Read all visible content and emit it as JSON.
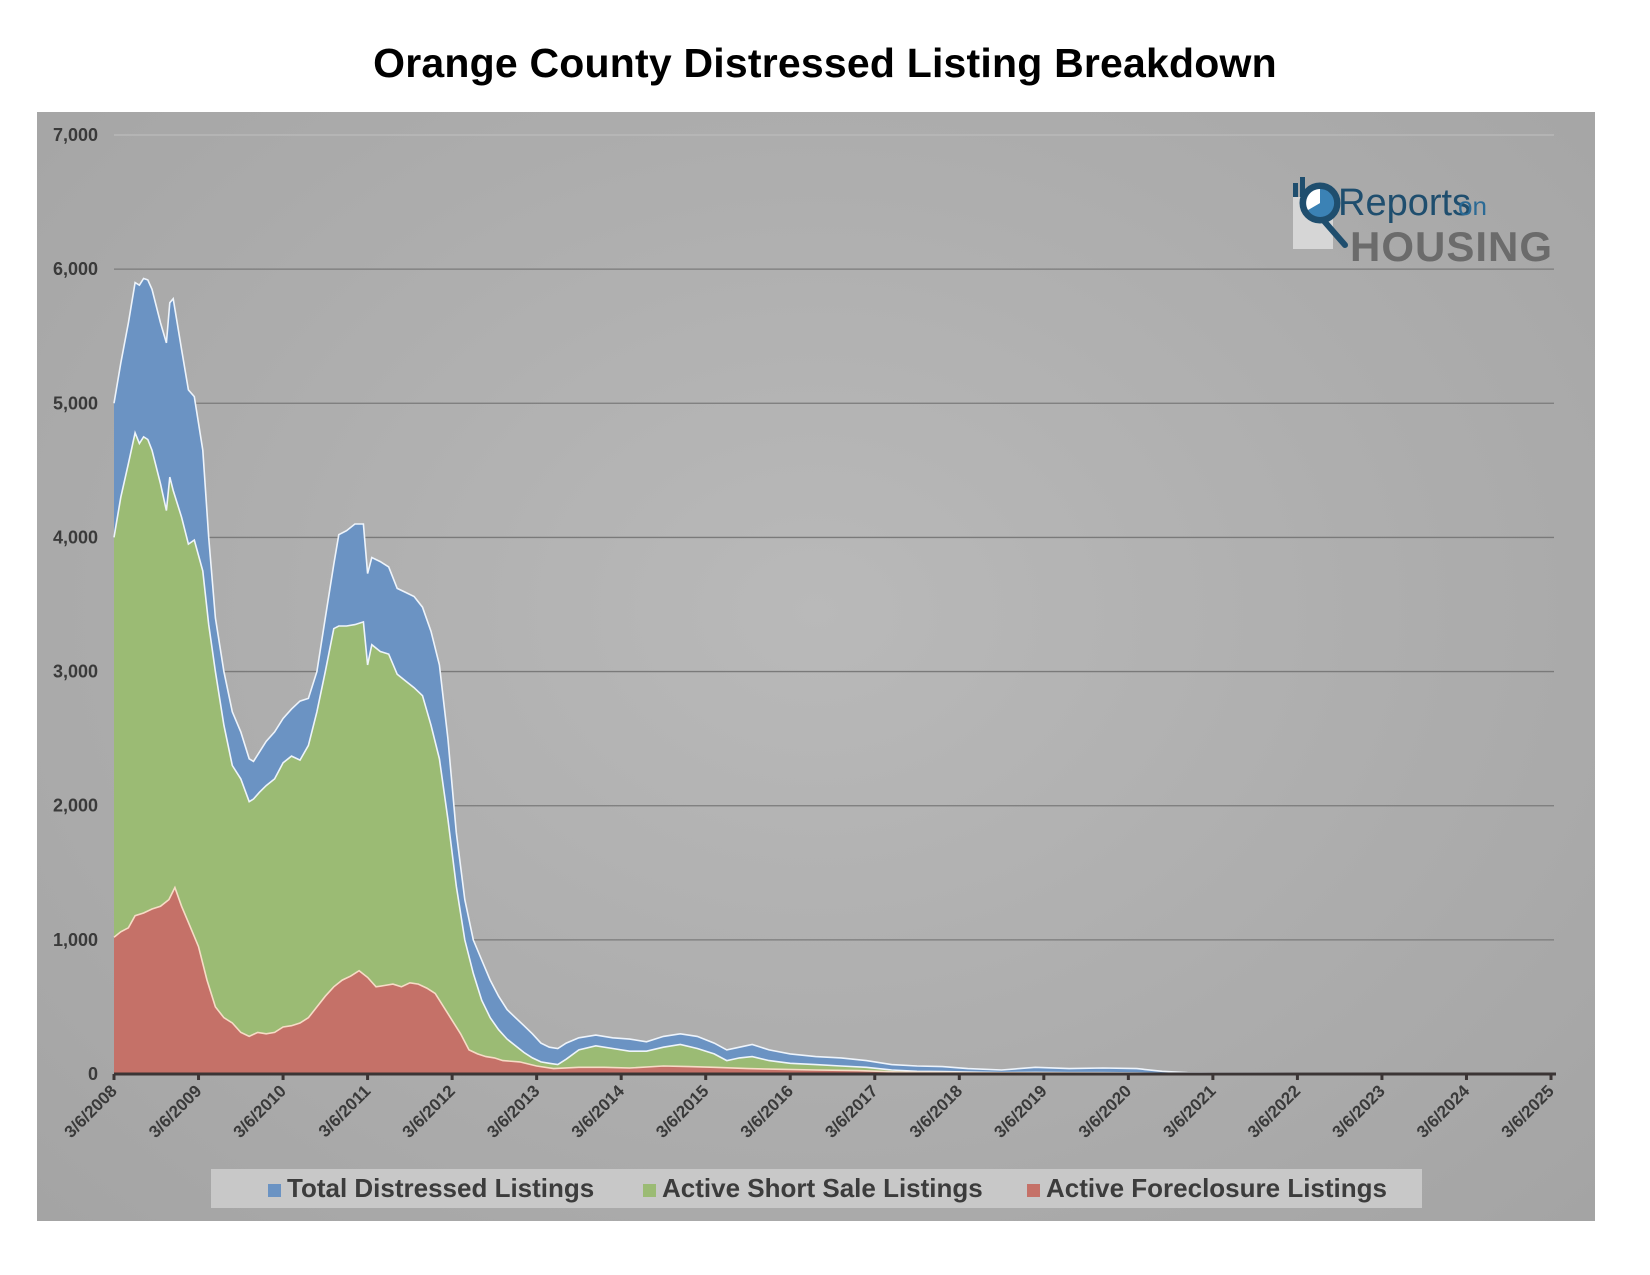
{
  "chart_data": {
    "type": "area",
    "title": "Orange County Distressed Listing Breakdown",
    "xlabel": "",
    "ylabel": "",
    "ylim": [
      0,
      7000
    ],
    "xlim": [
      2008,
      2025
    ],
    "grid": true,
    "legend_position": "bottom",
    "y_ticks": [
      "0",
      "1,000",
      "2,000",
      "3,000",
      "4,000",
      "5,000",
      "6,000",
      "7,000"
    ],
    "y_tick_values": [
      0,
      1000,
      2000,
      3000,
      4000,
      5000,
      6000,
      7000
    ],
    "x_ticks": [
      "3/6/2008",
      "3/6/2009",
      "3/6/2010",
      "3/6/2011",
      "3/6/2012",
      "3/6/2013",
      "3/6/2014",
      "3/6/2015",
      "3/6/2016",
      "3/6/2017",
      "3/6/2018",
      "3/6/2019",
      "3/6/2020",
      "3/6/2021",
      "3/6/2022",
      "3/6/2023",
      "3/6/2024",
      "3/6/2025"
    ],
    "x_tick_values": [
      2008,
      2009,
      2010,
      2011,
      2012,
      2013,
      2014,
      2015,
      2016,
      2017,
      2018,
      2019,
      2020,
      2021,
      2022,
      2023,
      2024,
      2025
    ],
    "series": [
      {
        "name": "Total Distressed Listings",
        "color": "#6b93c3",
        "points": [
          [
            2008.0,
            5000
          ],
          [
            2008.08,
            5300
          ],
          [
            2008.17,
            5600
          ],
          [
            2008.25,
            5900
          ],
          [
            2008.3,
            5880
          ],
          [
            2008.35,
            5930
          ],
          [
            2008.4,
            5920
          ],
          [
            2008.45,
            5850
          ],
          [
            2008.55,
            5600
          ],
          [
            2008.62,
            5450
          ],
          [
            2008.66,
            5750
          ],
          [
            2008.7,
            5780
          ],
          [
            2008.8,
            5400
          ],
          [
            2008.88,
            5100
          ],
          [
            2008.95,
            5050
          ],
          [
            2009.05,
            4650
          ],
          [
            2009.12,
            4000
          ],
          [
            2009.2,
            3400
          ],
          [
            2009.3,
            3000
          ],
          [
            2009.4,
            2700
          ],
          [
            2009.5,
            2550
          ],
          [
            2009.6,
            2350
          ],
          [
            2009.65,
            2330
          ],
          [
            2009.72,
            2400
          ],
          [
            2009.8,
            2480
          ],
          [
            2009.9,
            2550
          ],
          [
            2010.0,
            2650
          ],
          [
            2010.1,
            2720
          ],
          [
            2010.2,
            2780
          ],
          [
            2010.3,
            2800
          ],
          [
            2010.4,
            3000
          ],
          [
            2010.5,
            3400
          ],
          [
            2010.6,
            3800
          ],
          [
            2010.66,
            4020
          ],
          [
            2010.75,
            4050
          ],
          [
            2010.85,
            4100
          ],
          [
            2010.95,
            4100
          ],
          [
            2011.0,
            3730
          ],
          [
            2011.05,
            3850
          ],
          [
            2011.15,
            3820
          ],
          [
            2011.25,
            3780
          ],
          [
            2011.35,
            3620
          ],
          [
            2011.45,
            3590
          ],
          [
            2011.55,
            3560
          ],
          [
            2011.65,
            3480
          ],
          [
            2011.75,
            3300
          ],
          [
            2011.85,
            3050
          ],
          [
            2011.95,
            2500
          ],
          [
            2012.05,
            1800
          ],
          [
            2012.15,
            1300
          ],
          [
            2012.25,
            1000
          ],
          [
            2012.35,
            850
          ],
          [
            2012.45,
            700
          ],
          [
            2012.55,
            580
          ],
          [
            2012.65,
            480
          ],
          [
            2012.75,
            420
          ],
          [
            2012.85,
            360
          ],
          [
            2012.95,
            300
          ],
          [
            2013.05,
            230
          ],
          [
            2013.15,
            200
          ],
          [
            2013.25,
            190
          ],
          [
            2013.35,
            230
          ],
          [
            2013.5,
            270
          ],
          [
            2013.7,
            290
          ],
          [
            2013.9,
            270
          ],
          [
            2014.1,
            260
          ],
          [
            2014.3,
            240
          ],
          [
            2014.5,
            280
          ],
          [
            2014.7,
            300
          ],
          [
            2014.9,
            280
          ],
          [
            2015.1,
            230
          ],
          [
            2015.25,
            180
          ],
          [
            2015.4,
            200
          ],
          [
            2015.55,
            220
          ],
          [
            2015.75,
            180
          ],
          [
            2016.0,
            150
          ],
          [
            2016.3,
            130
          ],
          [
            2016.6,
            120
          ],
          [
            2016.9,
            100
          ],
          [
            2017.2,
            70
          ],
          [
            2017.5,
            60
          ],
          [
            2017.8,
            55
          ],
          [
            2018.1,
            40
          ],
          [
            2018.5,
            30
          ],
          [
            2018.9,
            50
          ],
          [
            2019.3,
            40
          ],
          [
            2019.7,
            45
          ],
          [
            2020.1,
            40
          ],
          [
            2020.4,
            20
          ],
          [
            2020.7,
            10
          ],
          [
            2021.0,
            8
          ],
          [
            2022.0,
            6
          ],
          [
            2023.0,
            5
          ],
          [
            2024.0,
            5
          ],
          [
            2025.0,
            5
          ]
        ]
      },
      {
        "name": "Active Short Sale Listings",
        "color": "#9bbb74",
        "points": [
          [
            2008.0,
            4000
          ],
          [
            2008.08,
            4300
          ],
          [
            2008.17,
            4550
          ],
          [
            2008.25,
            4780
          ],
          [
            2008.3,
            4700
          ],
          [
            2008.35,
            4750
          ],
          [
            2008.4,
            4730
          ],
          [
            2008.45,
            4650
          ],
          [
            2008.55,
            4400
          ],
          [
            2008.62,
            4200
          ],
          [
            2008.66,
            4450
          ],
          [
            2008.7,
            4350
          ],
          [
            2008.8,
            4150
          ],
          [
            2008.88,
            3950
          ],
          [
            2008.95,
            3980
          ],
          [
            2009.05,
            3750
          ],
          [
            2009.12,
            3350
          ],
          [
            2009.2,
            3000
          ],
          [
            2009.3,
            2600
          ],
          [
            2009.4,
            2300
          ],
          [
            2009.5,
            2200
          ],
          [
            2009.6,
            2030
          ],
          [
            2009.65,
            2050
          ],
          [
            2009.72,
            2100
          ],
          [
            2009.8,
            2150
          ],
          [
            2009.9,
            2200
          ],
          [
            2010.0,
            2320
          ],
          [
            2010.1,
            2370
          ],
          [
            2010.2,
            2340
          ],
          [
            2010.3,
            2450
          ],
          [
            2010.4,
            2700
          ],
          [
            2010.5,
            3000
          ],
          [
            2010.6,
            3320
          ],
          [
            2010.66,
            3340
          ],
          [
            2010.75,
            3340
          ],
          [
            2010.85,
            3350
          ],
          [
            2010.95,
            3370
          ],
          [
            2011.0,
            3050
          ],
          [
            2011.05,
            3200
          ],
          [
            2011.15,
            3150
          ],
          [
            2011.25,
            3130
          ],
          [
            2011.35,
            2980
          ],
          [
            2011.45,
            2930
          ],
          [
            2011.55,
            2880
          ],
          [
            2011.65,
            2820
          ],
          [
            2011.75,
            2600
          ],
          [
            2011.85,
            2350
          ],
          [
            2011.95,
            1900
          ],
          [
            2012.05,
            1400
          ],
          [
            2012.15,
            1000
          ],
          [
            2012.25,
            750
          ],
          [
            2012.35,
            550
          ],
          [
            2012.45,
            420
          ],
          [
            2012.55,
            330
          ],
          [
            2012.65,
            260
          ],
          [
            2012.75,
            210
          ],
          [
            2012.85,
            160
          ],
          [
            2012.95,
            120
          ],
          [
            2013.05,
            90
          ],
          [
            2013.15,
            80
          ],
          [
            2013.25,
            70
          ],
          [
            2013.35,
            110
          ],
          [
            2013.5,
            180
          ],
          [
            2013.7,
            210
          ],
          [
            2013.9,
            190
          ],
          [
            2014.1,
            170
          ],
          [
            2014.3,
            170
          ],
          [
            2014.5,
            200
          ],
          [
            2014.7,
            220
          ],
          [
            2014.9,
            190
          ],
          [
            2015.1,
            150
          ],
          [
            2015.25,
            100
          ],
          [
            2015.4,
            120
          ],
          [
            2015.55,
            130
          ],
          [
            2015.75,
            100
          ],
          [
            2016.0,
            80
          ],
          [
            2016.3,
            70
          ],
          [
            2016.6,
            60
          ],
          [
            2016.9,
            50
          ],
          [
            2017.2,
            30
          ],
          [
            2017.5,
            20
          ],
          [
            2017.8,
            18
          ],
          [
            2018.1,
            15
          ],
          [
            2018.5,
            10
          ],
          [
            2018.9,
            12
          ],
          [
            2019.3,
            10
          ],
          [
            2019.7,
            10
          ],
          [
            2020.1,
            8
          ],
          [
            2020.4,
            5
          ],
          [
            2020.7,
            3
          ],
          [
            2021.0,
            3
          ],
          [
            2022.0,
            2
          ],
          [
            2023.0,
            2
          ],
          [
            2024.0,
            2
          ],
          [
            2025.0,
            2
          ]
        ]
      },
      {
        "name": "Active Foreclosure Listings",
        "color": "#c57168",
        "points": [
          [
            2008.0,
            1020
          ],
          [
            2008.08,
            1060
          ],
          [
            2008.17,
            1090
          ],
          [
            2008.25,
            1180
          ],
          [
            2008.35,
            1200
          ],
          [
            2008.45,
            1230
          ],
          [
            2008.55,
            1250
          ],
          [
            2008.65,
            1300
          ],
          [
            2008.72,
            1390
          ],
          [
            2008.8,
            1250
          ],
          [
            2008.9,
            1100
          ],
          [
            2009.0,
            950
          ],
          [
            2009.1,
            700
          ],
          [
            2009.2,
            500
          ],
          [
            2009.3,
            420
          ],
          [
            2009.4,
            380
          ],
          [
            2009.5,
            310
          ],
          [
            2009.6,
            280
          ],
          [
            2009.7,
            310
          ],
          [
            2009.8,
            300
          ],
          [
            2009.9,
            310
          ],
          [
            2010.0,
            350
          ],
          [
            2010.1,
            360
          ],
          [
            2010.2,
            380
          ],
          [
            2010.3,
            420
          ],
          [
            2010.4,
            500
          ],
          [
            2010.5,
            580
          ],
          [
            2010.6,
            650
          ],
          [
            2010.7,
            700
          ],
          [
            2010.8,
            730
          ],
          [
            2010.9,
            770
          ],
          [
            2011.0,
            720
          ],
          [
            2011.1,
            650
          ],
          [
            2011.2,
            660
          ],
          [
            2011.3,
            670
          ],
          [
            2011.4,
            650
          ],
          [
            2011.5,
            680
          ],
          [
            2011.6,
            670
          ],
          [
            2011.7,
            640
          ],
          [
            2011.8,
            600
          ],
          [
            2011.9,
            500
          ],
          [
            2012.0,
            400
          ],
          [
            2012.1,
            300
          ],
          [
            2012.2,
            180
          ],
          [
            2012.3,
            150
          ],
          [
            2012.4,
            130
          ],
          [
            2012.5,
            120
          ],
          [
            2012.6,
            100
          ],
          [
            2012.8,
            90
          ],
          [
            2013.0,
            60
          ],
          [
            2013.2,
            40
          ],
          [
            2013.5,
            50
          ],
          [
            2013.8,
            50
          ],
          [
            2014.1,
            45
          ],
          [
            2014.5,
            60
          ],
          [
            2014.8,
            55
          ],
          [
            2015.1,
            50
          ],
          [
            2015.5,
            40
          ],
          [
            2015.9,
            35
          ],
          [
            2016.3,
            30
          ],
          [
            2016.8,
            25
          ],
          [
            2017.3,
            15
          ],
          [
            2018.0,
            10
          ],
          [
            2019.0,
            8
          ],
          [
            2020.0,
            5
          ],
          [
            2021.0,
            2
          ],
          [
            2022.0,
            1
          ],
          [
            2023.0,
            1
          ],
          [
            2024.0,
            1
          ],
          [
            2025.0,
            1
          ]
        ]
      }
    ]
  },
  "legend": {
    "items": [
      {
        "label": "Total Distressed Listings",
        "color": "#6b93c3"
      },
      {
        "label": "Active Short Sale Listings",
        "color": "#9bbb74"
      },
      {
        "label": "Active Foreclosure Listings",
        "color": "#c57168"
      }
    ]
  },
  "logo": {
    "line1": "Reports",
    "line1_suffix": "on",
    "line2": "HOUSING"
  }
}
